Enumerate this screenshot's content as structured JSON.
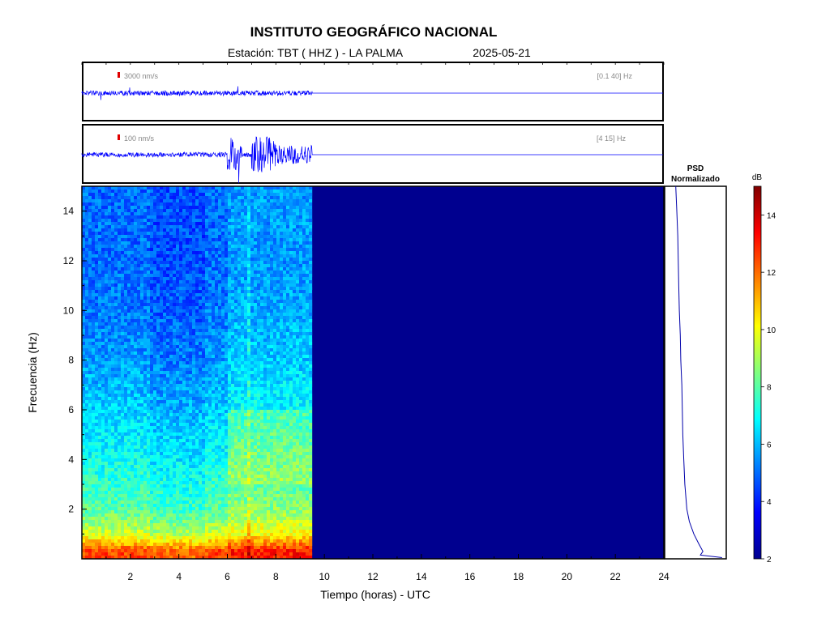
{
  "header": {
    "title": "INSTITUTO GEOGRÁFICO NACIONAL",
    "station_label": "Estación:  TBT ( HHZ ) - LA PALMA",
    "date": "2025-05-21"
  },
  "chart_data": [
    {
      "type": "line",
      "name": "seismogram-broadband",
      "scale_label": "3000 nm/s",
      "filter_label": "[0.1 40] Hz",
      "x_range_hours": [
        0,
        24
      ],
      "data_end_hour": 9.5,
      "color": "#0000ff"
    },
    {
      "type": "line",
      "name": "seismogram-filtered",
      "scale_label": "100 nm/s",
      "filter_label": "[4 15] Hz",
      "x_range_hours": [
        0,
        24
      ],
      "data_end_hour": 9.5,
      "color": "#0000ff",
      "bursts": [
        {
          "start": 6.0,
          "end": 6.6,
          "level": "high"
        },
        {
          "start": 7.0,
          "end": 8.0,
          "level": "high"
        },
        {
          "start": 8.0,
          "end": 9.5,
          "level": "medium"
        }
      ]
    },
    {
      "type": "heatmap",
      "name": "spectrogram",
      "xlabel": "Tiempo (horas) - UTC",
      "ylabel": "Frecuencia  (Hz)",
      "xlim": [
        0,
        24
      ],
      "ylim": [
        0,
        15
      ],
      "xticks": [
        2,
        4,
        6,
        8,
        10,
        12,
        14,
        16,
        18,
        20,
        22,
        24
      ],
      "yticks": [
        2,
        4,
        6,
        8,
        10,
        12,
        14
      ],
      "data_end_hour": 9.5,
      "empty_value_db": 2,
      "profile_db": [
        {
          "freq": 0.3,
          "db": 12.5
        },
        {
          "freq": 1.0,
          "db": 9.5
        },
        {
          "freq": 2.0,
          "db": 8.0
        },
        {
          "freq": 4.0,
          "db": 7.0
        },
        {
          "freq": 6.0,
          "db": 6.3
        },
        {
          "freq": 8.0,
          "db": 5.6
        },
        {
          "freq": 10.0,
          "db": 5.2
        },
        {
          "freq": 12.0,
          "db": 5.0
        },
        {
          "freq": 15.0,
          "db": 5.0
        }
      ]
    },
    {
      "type": "line",
      "name": "psd-normalized",
      "title": "PSD\nNormalizado",
      "ylim": [
        0,
        15
      ],
      "freq": [
        0.05,
        0.15,
        0.3,
        0.6,
        1.0,
        1.5,
        2.0,
        3.0,
        4.0,
        5.0,
        6.0,
        7.0,
        8.0,
        9.0,
        10.0,
        11.0,
        12.0,
        13.0,
        14.0,
        15.0
      ],
      "value": [
        0.98,
        0.55,
        0.6,
        0.52,
        0.42,
        0.33,
        0.28,
        0.24,
        0.22,
        0.2,
        0.19,
        0.18,
        0.16,
        0.15,
        0.13,
        0.12,
        0.11,
        0.1,
        0.08,
        0.06
      ],
      "color": "#0000aa"
    },
    {
      "type": "colorbar",
      "name": "db-colorbar",
      "label": "dB",
      "range": [
        2,
        15
      ],
      "ticks": [
        2,
        4,
        6,
        8,
        10,
        12,
        14
      ]
    }
  ]
}
